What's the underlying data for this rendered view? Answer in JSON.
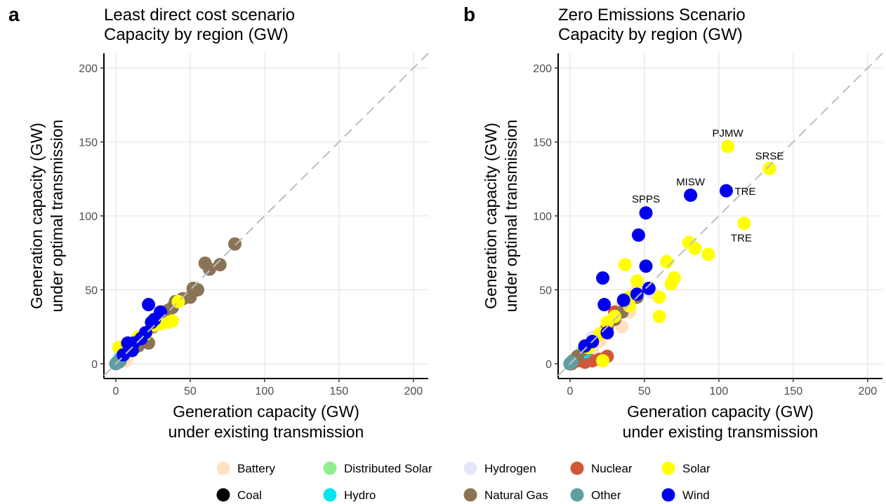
{
  "legend": {
    "items": [
      {
        "label": "Battery",
        "color": "#FFE0C2"
      },
      {
        "label": "Distributed Solar",
        "color": "#90EE90"
      },
      {
        "label": "Hydrogen",
        "color": "#E6E6FA"
      },
      {
        "label": "Nuclear",
        "color": "#D0573A"
      },
      {
        "label": "Solar",
        "color": "#FFFF00"
      },
      {
        "label": "Coal",
        "color": "#000000"
      },
      {
        "label": "Hydro",
        "color": "#00E5EE"
      },
      {
        "label": "Natural Gas",
        "color": "#8B7355"
      },
      {
        "label": "Other",
        "color": "#5F9EA0"
      },
      {
        "label": "Wind",
        "color": "#0000EE"
      }
    ]
  },
  "chart_data": [
    {
      "type": "scatter",
      "panel_letter": "a",
      "title": "Least direct cost scenario",
      "subtitle": "Capacity by region (GW)",
      "xlabel": "Generation capacity (GW)",
      "xlabel2": "under existing transmission",
      "ylabel": "Generation capacity (GW)",
      "ylabel2": "under optimal transmission",
      "xlim": [
        -8,
        210
      ],
      "ylim": [
        -10,
        210
      ],
      "xticks": [
        0,
        50,
        100,
        150,
        200
      ],
      "yticks": [
        0,
        50,
        100,
        150,
        200
      ],
      "xtick_labels": [
        "0",
        "50",
        "100",
        "150",
        "200"
      ],
      "ytick_labels": [
        "0",
        "50",
        "100",
        "150",
        "200"
      ],
      "grid": true,
      "diagonal": true,
      "series": [
        {
          "name": "Battery",
          "points": [
            [
              5,
              3
            ],
            [
              8,
              5
            ],
            [
              10,
              8
            ],
            [
              12,
              11
            ],
            [
              7,
              2
            ]
          ]
        },
        {
          "name": "Distributed Solar",
          "points": [
            [
              3,
              3
            ],
            [
              6,
              6
            ],
            [
              9,
              9
            ],
            [
              11,
              11
            ]
          ]
        },
        {
          "name": "Hydrogen",
          "points": []
        },
        {
          "name": "Nuclear",
          "points": [
            [
              10,
              12
            ],
            [
              15,
              15
            ]
          ]
        },
        {
          "name": "Coal",
          "points": [
            [
              1,
              1
            ],
            [
              2,
              2
            ]
          ]
        },
        {
          "name": "Hydro",
          "points": [
            [
              1,
              1
            ],
            [
              3,
              4
            ]
          ]
        },
        {
          "name": "Natural Gas",
          "points": [
            [
              80,
              81
            ],
            [
              70,
              67
            ],
            [
              60,
              68
            ],
            [
              63,
              64
            ],
            [
              55,
              50
            ],
            [
              52,
              51
            ],
            [
              50,
              45
            ],
            [
              45,
              44
            ],
            [
              40,
              42
            ],
            [
              38,
              38
            ],
            [
              35,
              36
            ],
            [
              30,
              30
            ],
            [
              25,
              25
            ],
            [
              22,
              14
            ],
            [
              20,
              15
            ],
            [
              18,
              18
            ],
            [
              15,
              12
            ]
          ]
        },
        {
          "name": "Other",
          "points": [
            [
              0,
              0
            ],
            [
              1,
              1
            ],
            [
              2,
              1
            ],
            [
              3,
              2
            ]
          ]
        },
        {
          "name": "Solar",
          "points": [
            [
              42,
              42
            ],
            [
              38,
              29
            ],
            [
              35,
              28
            ],
            [
              30,
              27
            ],
            [
              28,
              30
            ],
            [
              26,
              26
            ],
            [
              20,
              20
            ],
            [
              15,
              18
            ],
            [
              12,
              14
            ],
            [
              2,
              11
            ],
            [
              10,
              9
            ],
            [
              8,
              10
            ]
          ]
        },
        {
          "name": "Wind",
          "points": [
            [
              22,
              40
            ],
            [
              30,
              35
            ],
            [
              26,
              30
            ],
            [
              24,
              28
            ],
            [
              20,
              21
            ],
            [
              17,
              17
            ],
            [
              12,
              14
            ],
            [
              8,
              14
            ],
            [
              11,
              9
            ],
            [
              5,
              6
            ]
          ]
        }
      ],
      "annotations": []
    },
    {
      "type": "scatter",
      "panel_letter": "b",
      "title": "Zero Emissions Scenario",
      "subtitle": "Capacity by region (GW)",
      "xlabel": "Generation capacity (GW)",
      "xlabel2": "under existing transmission",
      "ylabel": "Generation capacity (GW)",
      "ylabel2": "under optimal transmission",
      "xlim": [
        -8,
        210
      ],
      "ylim": [
        -10,
        210
      ],
      "xticks": [
        0,
        50,
        100,
        150,
        200
      ],
      "yticks": [
        0,
        50,
        100,
        150,
        200
      ],
      "xtick_labels": [
        "0",
        "50",
        "100",
        "150",
        "200"
      ],
      "ytick_labels": [
        "0",
        "50",
        "100",
        "150",
        "200"
      ],
      "grid": true,
      "diagonal": true,
      "series": [
        {
          "name": "Battery",
          "points": [
            [
              45,
              50
            ],
            [
              35,
              40
            ],
            [
              40,
              35
            ],
            [
              35,
              25
            ],
            [
              25,
              20
            ],
            [
              20,
              15
            ],
            [
              15,
              10
            ],
            [
              10,
              10
            ],
            [
              8,
              5
            ],
            [
              5,
              3
            ]
          ]
        },
        {
          "name": "Distributed Solar",
          "points": [
            [
              10,
              10
            ],
            [
              8,
              8
            ],
            [
              5,
              5
            ]
          ]
        },
        {
          "name": "Hydrogen",
          "points": [
            [
              55,
              48
            ],
            [
              25,
              25
            ],
            [
              20,
              20
            ],
            [
              15,
              18
            ],
            [
              10,
              10
            ],
            [
              5,
              5
            ]
          ]
        },
        {
          "name": "Nuclear",
          "points": [
            [
              25,
              5
            ],
            [
              20,
              3
            ],
            [
              15,
              2
            ],
            [
              10,
              1
            ],
            [
              5,
              2
            ],
            [
              2,
              1
            ],
            [
              1,
              0
            ],
            [
              30,
              35
            ],
            [
              25,
              25
            ]
          ]
        },
        {
          "name": "Coal",
          "points": [
            [
              0,
              0
            ],
            [
              1,
              1
            ]
          ]
        },
        {
          "name": "Hydro",
          "points": [
            [
              10,
              8
            ],
            [
              12,
              12
            ]
          ]
        },
        {
          "name": "Natural Gas",
          "points": [
            [
              45,
              45
            ],
            [
              35,
              35
            ],
            [
              30,
              30
            ],
            [
              20,
              20
            ],
            [
              15,
              15
            ],
            [
              10,
              10
            ],
            [
              5,
              5
            ],
            [
              2,
              2
            ]
          ]
        },
        {
          "name": "Other",
          "points": [
            [
              0,
              0
            ],
            [
              1,
              1
            ]
          ]
        },
        {
          "name": "Solar",
          "points": [
            [
              106,
              147
            ],
            [
              134,
              132
            ],
            [
              117,
              95
            ],
            [
              80,
              82
            ],
            [
              84,
              78
            ],
            [
              93,
              74
            ],
            [
              65,
              69
            ],
            [
              70,
              58
            ],
            [
              68,
              54
            ],
            [
              60,
              45
            ],
            [
              60,
              32
            ],
            [
              37,
              67
            ],
            [
              45,
              56
            ],
            [
              40,
              45
            ],
            [
              40,
              39
            ],
            [
              30,
              32
            ],
            [
              25,
              28
            ],
            [
              20,
              20
            ],
            [
              15,
              15
            ],
            [
              12,
              11
            ],
            [
              22,
              2
            ]
          ]
        },
        {
          "name": "Wind",
          "points": [
            [
              51,
              102
            ],
            [
              46,
              87
            ],
            [
              81,
              114
            ],
            [
              105,
              117
            ],
            [
              51,
              66
            ],
            [
              22,
              58
            ],
            [
              53,
              51
            ],
            [
              45,
              47
            ],
            [
              36,
              43
            ],
            [
              23,
              40
            ],
            [
              25,
              21
            ],
            [
              15,
              15
            ],
            [
              10,
              12
            ]
          ]
        }
      ],
      "annotations": [
        {
          "text": "PJMW",
          "x": 106,
          "y": 147
        },
        {
          "text": "SRSE",
          "x": 134,
          "y": 132
        },
        {
          "text": "TRE",
          "x": 105,
          "y": 117
        },
        {
          "text": "TRE",
          "x": 117,
          "y": 95
        },
        {
          "text": "MISW",
          "x": 81,
          "y": 114
        },
        {
          "text": "SPPS",
          "x": 51,
          "y": 102
        }
      ]
    }
  ]
}
